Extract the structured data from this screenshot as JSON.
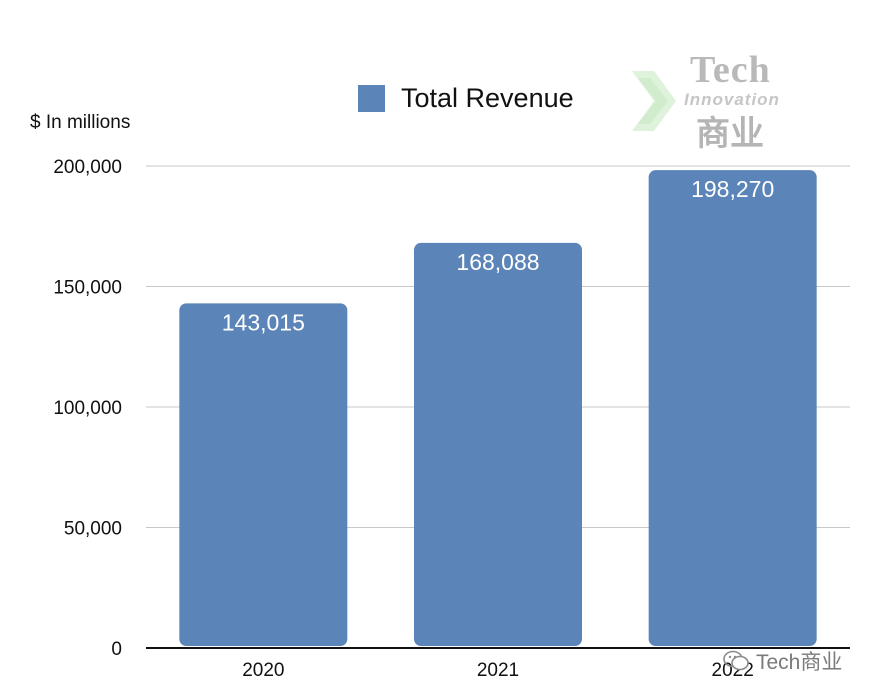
{
  "chart_data": {
    "type": "bar",
    "categories": [
      "2020",
      "2021",
      "2022"
    ],
    "series": [
      {
        "name": "Total Revenue",
        "values": [
          143015,
          168088,
          198270
        ],
        "color": "#5b84b8"
      }
    ],
    "data_labels": [
      "143,015",
      "168,088",
      "198,270"
    ],
    "ylabel": "$ In millions",
    "xlabel": "",
    "ylim": [
      0,
      200000
    ],
    "yticks": [
      0,
      50000,
      100000,
      150000,
      200000
    ],
    "ytick_labels": [
      "0",
      "50,000",
      "100,000",
      "150,000",
      "200,000"
    ],
    "grid": true,
    "legend_position": "top-center"
  },
  "logo": {
    "line1": "Tech",
    "line2": "Innovation",
    "line3": "商业"
  },
  "watermark": {
    "text": "Tech商业",
    "icon": "wechat-icon"
  }
}
